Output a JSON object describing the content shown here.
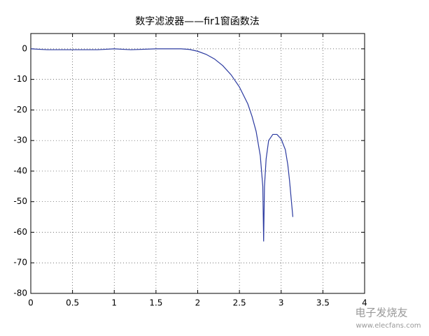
{
  "chart_data": {
    "type": "line",
    "title": "数字滤波器——fir1窗函数法",
    "series": [
      {
        "color": "#2b3aa0",
        "x": [
          0,
          0.2,
          0.5,
          0.8,
          1.0,
          1.2,
          1.5,
          1.8,
          1.9,
          2.0,
          2.1,
          2.2,
          2.3,
          2.4,
          2.5,
          2.6,
          2.65,
          2.7,
          2.75,
          2.78,
          2.79,
          2.8,
          2.82,
          2.85,
          2.9,
          2.95,
          3.0,
          3.05,
          3.08,
          3.1,
          3.14
        ],
        "values": [
          0,
          -0.3,
          -0.3,
          -0.3,
          0,
          -0.3,
          0,
          0,
          -0.2,
          -0.8,
          -1.8,
          -3.3,
          -5.5,
          -8.5,
          -12.5,
          -18,
          -22,
          -27,
          -35,
          -45,
          -63,
          -45,
          -36,
          -30,
          -28,
          -28,
          -29.5,
          -33,
          -38,
          -43,
          -55
        ]
      }
    ],
    "xlim": [
      0,
      4
    ],
    "xticks": [
      0,
      0.5,
      1,
      1.5,
      2,
      2.5,
      3,
      3.5,
      4
    ],
    "ylim": [
      -80,
      5
    ],
    "yticks": [
      0,
      -10,
      -20,
      -30,
      -40,
      -50,
      -60,
      -70,
      -80
    ],
    "grid": true
  },
  "watermark": {
    "brand": "电子发烧友",
    "url": "www.elecfans.com"
  }
}
